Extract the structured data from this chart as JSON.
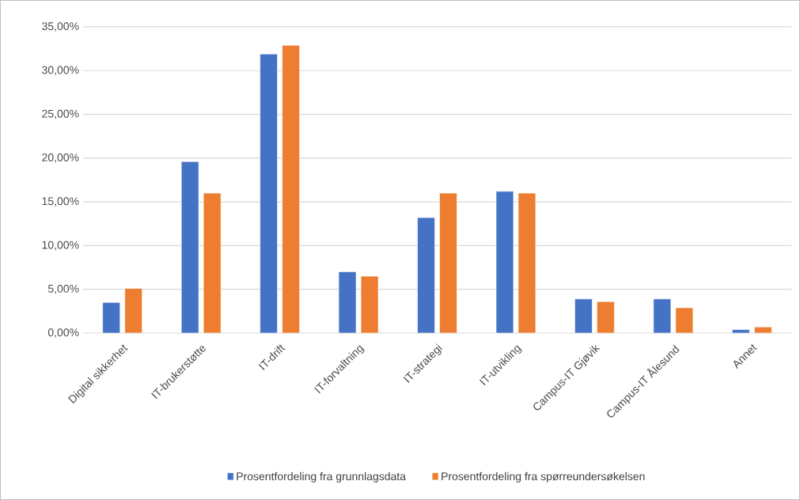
{
  "chart_data": {
    "type": "bar",
    "categories": [
      "Digital sikkerhet",
      "IT-brukerstøtte",
      "IT-drift",
      "IT-forvaltning",
      "IT-strategi",
      "IT-utvikling",
      "Campus-IT Gjøvik",
      "Campus-IT Ålesund",
      "Annet"
    ],
    "series": [
      {
        "name": "Prosentfordeling fra grunnlagsdata",
        "color": "#4472c4",
        "values": [
          3.5,
          19.6,
          31.9,
          7.0,
          13.2,
          16.2,
          3.9,
          3.9,
          0.4
        ]
      },
      {
        "name": "Prosentfordeling fra spørreundersøkelsen",
        "color": "#ed7d31",
        "values": [
          5.1,
          16.0,
          32.9,
          6.5,
          16.0,
          16.0,
          3.6,
          2.9,
          0.7
        ]
      }
    ],
    "ylim": [
      0,
      35
    ],
    "yticks": [
      {
        "value": 0,
        "label": "0,00%"
      },
      {
        "value": 5,
        "label": "5,00%"
      },
      {
        "value": 10,
        "label": "10,00%"
      },
      {
        "value": 15,
        "label": "15,00%"
      },
      {
        "value": 20,
        "label": "20,00%"
      },
      {
        "value": 25,
        "label": "25,00%"
      },
      {
        "value": 30,
        "label": "30,00%"
      },
      {
        "value": 35,
        "label": "35,00%"
      }
    ],
    "grid": "y",
    "legend": "bottom"
  }
}
